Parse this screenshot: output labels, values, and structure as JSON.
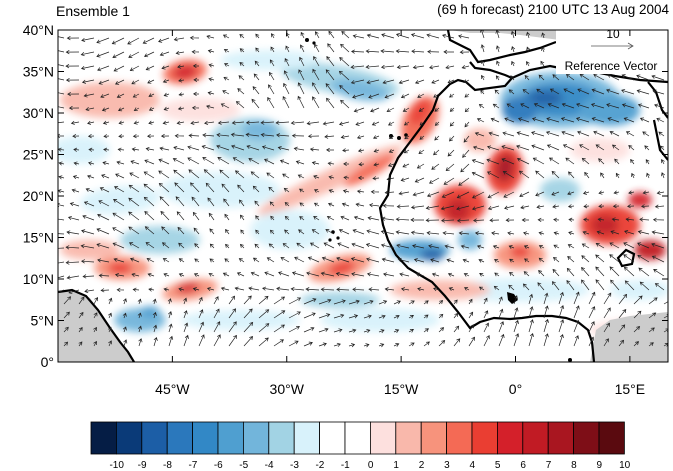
{
  "header": {
    "left_title": "Ensemble 1",
    "right_title": "(69 h forecast) 2100 UTC 13 Aug 2004"
  },
  "map": {
    "lat_range": [
      0,
      40
    ],
    "lon_range": [
      -60,
      20
    ],
    "lat_ticks": [
      {
        "value": 0,
        "label": "0°"
      },
      {
        "value": 5,
        "label": "5°N"
      },
      {
        "value": 10,
        "label": "10°N"
      },
      {
        "value": 15,
        "label": "15°N"
      },
      {
        "value": 20,
        "label": "20°N"
      },
      {
        "value": 25,
        "label": "25°N"
      },
      {
        "value": 30,
        "label": "30°N"
      },
      {
        "value": 35,
        "label": "35°N"
      },
      {
        "value": 40,
        "label": "40°N"
      }
    ],
    "lon_ticks": [
      {
        "value": -45,
        "label": "45°W"
      },
      {
        "value": -30,
        "label": "30°W"
      },
      {
        "value": -15,
        "label": "15°W"
      },
      {
        "value": 0,
        "label": "0°"
      },
      {
        "value": 15,
        "label": "15°E"
      }
    ],
    "land_color": "#cccccc",
    "coast_color": "#000000",
    "vector_color": "#222222"
  },
  "reference_vector": {
    "magnitude": "10",
    "label": "Reference Vector"
  },
  "colorbar": {
    "labels": [
      "-10",
      "-9",
      "-8",
      "-7",
      "-6",
      "-5",
      "-4",
      "-3",
      "-2",
      "-1",
      "0",
      "1",
      "2",
      "3",
      "4",
      "5",
      "6",
      "7",
      "8",
      "9",
      "10"
    ],
    "colors": [
      "#051d45",
      "#0a3a78",
      "#1c5ea6",
      "#2b78bc",
      "#3288c6",
      "#4f9fd0",
      "#72b5db",
      "#a2d3e4",
      "#d8f2fb",
      "#ffffff",
      "#ffffff",
      "#fde0de",
      "#f9b8ab",
      "#f7937c",
      "#f46a55",
      "#ea3e32",
      "#d4202a",
      "#c11b24",
      "#a91620",
      "#7e0e17",
      "#5a0a0f"
    ]
  }
}
